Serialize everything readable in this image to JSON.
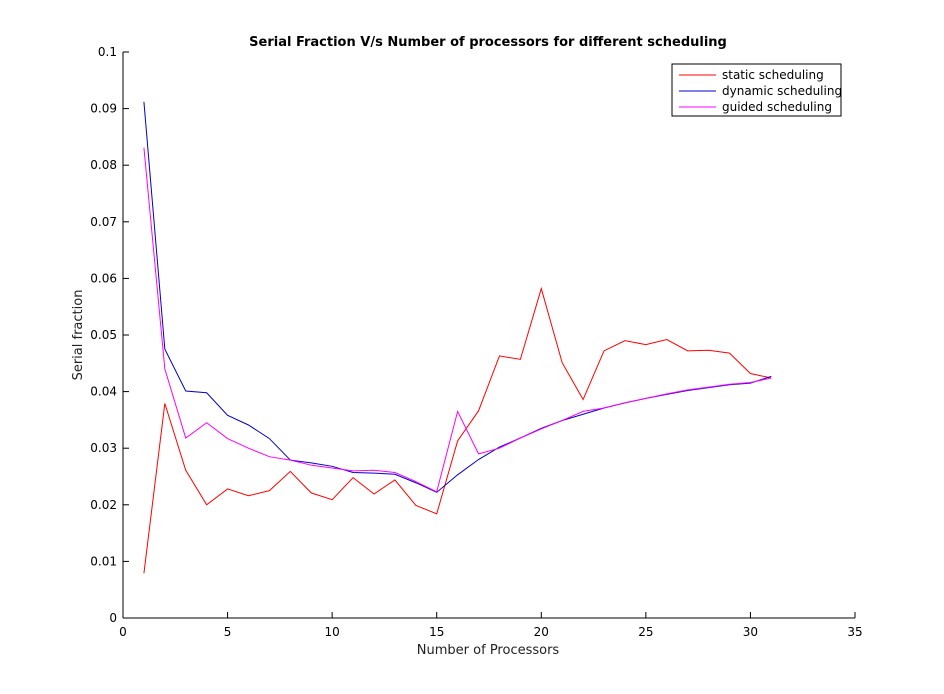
{
  "chart_data": {
    "type": "line",
    "title": "Serial Fraction V/s Number of processors for different scheduling",
    "xlabel": "Number of Processors",
    "ylabel": "Serial fraction",
    "xlim": [
      0,
      35
    ],
    "ylim": [
      0,
      0.1
    ],
    "xticks": [
      0,
      5,
      10,
      15,
      20,
      25,
      30,
      35
    ],
    "yticks": [
      0,
      0.01,
      0.02,
      0.03,
      0.04,
      0.05,
      0.06,
      0.07,
      0.08,
      0.09,
      0.1
    ],
    "xtick_labels": [
      "0",
      "5",
      "10",
      "15",
      "20",
      "25",
      "30",
      "35"
    ],
    "ytick_labels": [
      "0",
      "0.01",
      "0.02",
      "0.03",
      "0.04",
      "0.05",
      "0.06",
      "0.07",
      "0.08",
      "0.09",
      "0.1"
    ],
    "grid": false,
    "legend_position": "top-right",
    "x": [
      1,
      2,
      3,
      4,
      5,
      6,
      7,
      8,
      9,
      10,
      11,
      12,
      13,
      14,
      15,
      16,
      17,
      18,
      19,
      20,
      21,
      22,
      23,
      24,
      25,
      26,
      27,
      28,
      29,
      30,
      31
    ],
    "series": [
      {
        "name": "static scheduling",
        "color": "#ff0000",
        "values": [
          0.0079,
          0.0379,
          0.0261,
          0.02,
          0.0228,
          0.0216,
          0.0225,
          0.0259,
          0.0221,
          0.0209,
          0.0248,
          0.0219,
          0.0244,
          0.0199,
          0.0184,
          0.0313,
          0.0366,
          0.0463,
          0.0457,
          0.0582,
          0.0451,
          0.0386,
          0.0472,
          0.049,
          0.0483,
          0.0492,
          0.0472,
          0.0473,
          0.0468,
          0.0432,
          0.0424
        ]
      },
      {
        "name": "dynamic scheduling",
        "color": "#0000cc",
        "values": [
          0.0912,
          0.0475,
          0.0401,
          0.0398,
          0.0358,
          0.0341,
          0.0317,
          0.0279,
          0.0274,
          0.0268,
          0.0257,
          0.0256,
          0.0254,
          0.0239,
          0.0222,
          0.0253,
          0.028,
          0.0302,
          0.0318,
          0.0335,
          0.0349,
          0.036,
          0.0371,
          0.038,
          0.0388,
          0.0395,
          0.0402,
          0.0407,
          0.0412,
          0.0415,
          0.0427
        ]
      },
      {
        "name": "guided scheduling",
        "color": "#ff00ff",
        "values": [
          0.0831,
          0.044,
          0.0318,
          0.0345,
          0.0317,
          0.03,
          0.0285,
          0.0279,
          0.027,
          0.0265,
          0.026,
          0.0261,
          0.0257,
          0.0241,
          0.0223,
          0.0365,
          0.029,
          0.03,
          0.0318,
          0.0334,
          0.0349,
          0.0365,
          0.0371,
          0.038,
          0.0388,
          0.0396,
          0.0403,
          0.0408,
          0.0413,
          0.0416,
          0.0424
        ]
      }
    ]
  }
}
